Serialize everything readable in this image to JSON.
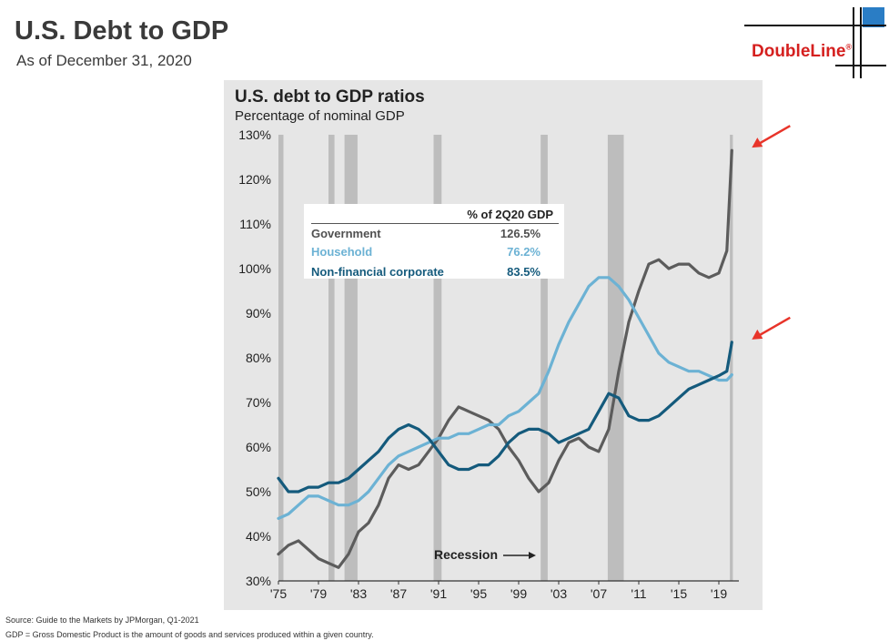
{
  "slide": {
    "title": "U.S. Debt to GDP",
    "subtitle": "As of December 31, 2020"
  },
  "logo": {
    "text": "DoubleLine",
    "mark": "®",
    "color": "#d5201f"
  },
  "footnotes": {
    "source": "Source: Guide to the Markets by JPMorgan, Q1-2021",
    "definition": "GDP = Gross Domestic Product is the amount of goods and services produced within a given country."
  },
  "chart_data": {
    "type": "line",
    "title": "U.S. debt to GDP ratios",
    "subtitle": "Percentage of nominal GDP",
    "xlabel": "",
    "ylabel": "",
    "xlim": [
      1975,
      2021
    ],
    "ylim": [
      30,
      130
    ],
    "y_ticks": [
      30,
      40,
      50,
      60,
      70,
      80,
      90,
      100,
      110,
      120,
      130
    ],
    "y_tick_labels": [
      "30%",
      "40%",
      "50%",
      "60%",
      "70%",
      "80%",
      "90%",
      "100%",
      "110%",
      "120%",
      "130%"
    ],
    "x_ticks": [
      1975,
      1979,
      1983,
      1987,
      1991,
      1995,
      1999,
      2003,
      2007,
      2011,
      2015,
      2019
    ],
    "x_tick_labels": [
      "'75",
      "'79",
      "'83",
      "'87",
      "'91",
      "'95",
      "'99",
      "'03",
      "'07",
      "'11",
      "'15",
      "'19"
    ],
    "recessions": [
      [
        1975.0,
        1975.5
      ],
      [
        1980.0,
        1980.6
      ],
      [
        1981.6,
        1982.9
      ],
      [
        1990.5,
        1991.3
      ],
      [
        2001.2,
        2001.9
      ],
      [
        2007.9,
        2009.5
      ],
      [
        2020.1,
        2020.4
      ]
    ],
    "recession_label": "Recession",
    "legend": {
      "header": "% of 2Q20 GDP",
      "entries": [
        {
          "name": "Government",
          "value": "126.5%"
        },
        {
          "name": "Household",
          "value": "76.2%"
        },
        {
          "name": "Non-financial corporate",
          "value": "83.5%"
        }
      ]
    },
    "series": [
      {
        "name": "Government",
        "color": "#5c5c5c",
        "points": [
          [
            1975,
            36
          ],
          [
            1976,
            38
          ],
          [
            1977,
            39
          ],
          [
            1978,
            37
          ],
          [
            1979,
            35
          ],
          [
            1980,
            34
          ],
          [
            1981,
            33
          ],
          [
            1982,
            36
          ],
          [
            1983,
            41
          ],
          [
            1984,
            43
          ],
          [
            1985,
            47
          ],
          [
            1986,
            53
          ],
          [
            1987,
            56
          ],
          [
            1988,
            55
          ],
          [
            1989,
            56
          ],
          [
            1990,
            59
          ],
          [
            1991,
            62
          ],
          [
            1992,
            66
          ],
          [
            1993,
            69
          ],
          [
            1994,
            68
          ],
          [
            1995,
            67
          ],
          [
            1996,
            66
          ],
          [
            1997,
            64
          ],
          [
            1998,
            60
          ],
          [
            1999,
            57
          ],
          [
            2000,
            53
          ],
          [
            2001,
            50
          ],
          [
            2002,
            52
          ],
          [
            2003,
            57
          ],
          [
            2004,
            61
          ],
          [
            2005,
            62
          ],
          [
            2006,
            60
          ],
          [
            2007,
            59
          ],
          [
            2008,
            64
          ],
          [
            2009,
            77
          ],
          [
            2010,
            88
          ],
          [
            2011,
            95
          ],
          [
            2012,
            101
          ],
          [
            2013,
            102
          ],
          [
            2014,
            100
          ],
          [
            2015,
            101
          ],
          [
            2016,
            101
          ],
          [
            2017,
            99
          ],
          [
            2018,
            98
          ],
          [
            2019,
            99
          ],
          [
            2019.8,
            104
          ],
          [
            2020.3,
            126.5
          ]
        ]
      },
      {
        "name": "Household",
        "color": "#6cb2d4",
        "points": [
          [
            1975,
            44
          ],
          [
            1976,
            45
          ],
          [
            1977,
            47
          ],
          [
            1978,
            49
          ],
          [
            1979,
            49
          ],
          [
            1980,
            48
          ],
          [
            1981,
            47
          ],
          [
            1982,
            47
          ],
          [
            1983,
            48
          ],
          [
            1984,
            50
          ],
          [
            1985,
            53
          ],
          [
            1986,
            56
          ],
          [
            1987,
            58
          ],
          [
            1988,
            59
          ],
          [
            1989,
            60
          ],
          [
            1990,
            61
          ],
          [
            1991,
            62
          ],
          [
            1992,
            62
          ],
          [
            1993,
            63
          ],
          [
            1994,
            63
          ],
          [
            1995,
            64
          ],
          [
            1996,
            65
          ],
          [
            1997,
            65
          ],
          [
            1998,
            67
          ],
          [
            1999,
            68
          ],
          [
            2000,
            70
          ],
          [
            2001,
            72
          ],
          [
            2002,
            77
          ],
          [
            2003,
            83
          ],
          [
            2004,
            88
          ],
          [
            2005,
            92
          ],
          [
            2006,
            96
          ],
          [
            2007,
            98
          ],
          [
            2008,
            98
          ],
          [
            2009,
            96
          ],
          [
            2010,
            93
          ],
          [
            2011,
            89
          ],
          [
            2012,
            85
          ],
          [
            2013,
            81
          ],
          [
            2014,
            79
          ],
          [
            2015,
            78
          ],
          [
            2016,
            77
          ],
          [
            2017,
            77
          ],
          [
            2018,
            76
          ],
          [
            2019,
            75
          ],
          [
            2019.8,
            75
          ],
          [
            2020.3,
            76.2
          ]
        ]
      },
      {
        "name": "Non-financial corporate",
        "color": "#145a7c",
        "points": [
          [
            1975,
            53
          ],
          [
            1976,
            50
          ],
          [
            1977,
            50
          ],
          [
            1978,
            51
          ],
          [
            1979,
            51
          ],
          [
            1980,
            52
          ],
          [
            1981,
            52
          ],
          [
            1982,
            53
          ],
          [
            1983,
            55
          ],
          [
            1984,
            57
          ],
          [
            1985,
            59
          ],
          [
            1986,
            62
          ],
          [
            1987,
            64
          ],
          [
            1988,
            65
          ],
          [
            1989,
            64
          ],
          [
            1990,
            62
          ],
          [
            1991,
            59
          ],
          [
            1992,
            56
          ],
          [
            1993,
            55
          ],
          [
            1994,
            55
          ],
          [
            1995,
            56
          ],
          [
            1996,
            56
          ],
          [
            1997,
            58
          ],
          [
            1998,
            61
          ],
          [
            1999,
            63
          ],
          [
            2000,
            64
          ],
          [
            2001,
            64
          ],
          [
            2002,
            63
          ],
          [
            2003,
            61
          ],
          [
            2004,
            62
          ],
          [
            2005,
            63
          ],
          [
            2006,
            64
          ],
          [
            2007,
            68
          ],
          [
            2008,
            72
          ],
          [
            2009,
            71
          ],
          [
            2010,
            67
          ],
          [
            2011,
            66
          ],
          [
            2012,
            66
          ],
          [
            2013,
            67
          ],
          [
            2014,
            69
          ],
          [
            2015,
            71
          ],
          [
            2016,
            73
          ],
          [
            2017,
            74
          ],
          [
            2018,
            75
          ],
          [
            2019,
            76
          ],
          [
            2019.8,
            77
          ],
          [
            2020.3,
            83.5
          ]
        ]
      }
    ],
    "annotations": [
      "red arrow pointing to Government 2Q20 value",
      "red arrow pointing to Non-financial corporate 2Q20 value"
    ]
  }
}
